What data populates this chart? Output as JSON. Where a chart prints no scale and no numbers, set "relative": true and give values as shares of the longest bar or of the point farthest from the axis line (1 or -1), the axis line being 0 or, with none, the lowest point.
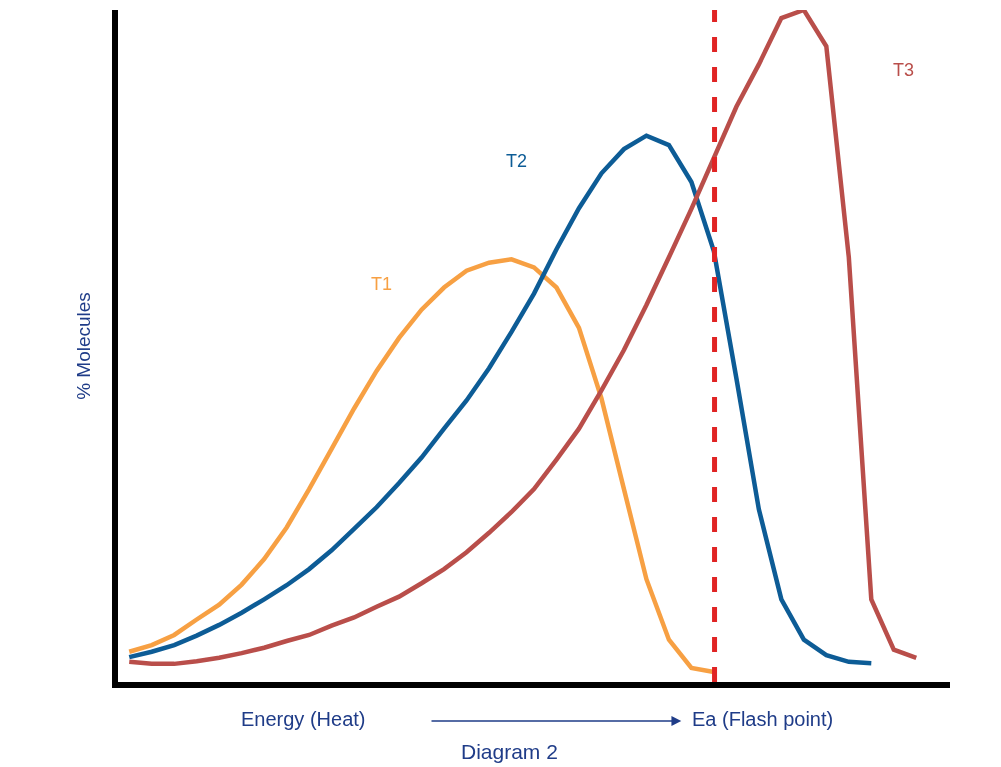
{
  "chart_data": {
    "type": "line",
    "relative": true,
    "ylabel": "% Molecules",
    "xlabel": "Energy (Heat)",
    "annotations": [
      "Ea (Flash point)",
      "Diagram 2"
    ],
    "categories": [
      null,
      null,
      null,
      null,
      null,
      null,
      null,
      null,
      null,
      null,
      null,
      null,
      null,
      null,
      null,
      null,
      null,
      null,
      null,
      null,
      null,
      null,
      null,
      null,
      null,
      null,
      null,
      null,
      null,
      null,
      null,
      null,
      null,
      null,
      null,
      null,
      null
    ],
    "series": [
      {
        "name": "T1",
        "color": "#f7a043",
        "values": [
          0.045,
          0.055,
          0.07,
          0.093,
          0.115,
          0.145,
          0.183,
          0.23,
          0.287,
          0.347,
          0.407,
          0.463,
          0.512,
          0.554,
          0.587,
          0.612,
          0.624,
          0.629,
          0.617,
          0.587,
          0.527,
          0.422,
          0.287,
          0.153,
          0.063,
          0.021,
          0.015,
          null,
          null,
          null,
          null,
          null,
          null,
          null,
          null,
          null,
          null
        ]
      },
      {
        "name": "T2",
        "color": "#0d5c96",
        "values": [
          0.037,
          0.045,
          0.055,
          0.069,
          0.085,
          0.103,
          0.123,
          0.144,
          0.168,
          0.196,
          0.228,
          0.26,
          0.296,
          0.334,
          0.377,
          0.419,
          0.467,
          0.521,
          0.578,
          0.644,
          0.705,
          0.757,
          0.793,
          0.813,
          0.799,
          0.744,
          0.641,
          0.452,
          0.257,
          0.123,
          0.063,
          0.04,
          0.03,
          0.028,
          null,
          null,
          null
        ]
      },
      {
        "name": "T3",
        "color": "#b94e4a",
        "values": [
          0.03,
          0.027,
          0.027,
          0.031,
          0.036,
          0.043,
          0.051,
          0.061,
          0.07,
          0.084,
          0.096,
          0.112,
          0.127,
          0.147,
          0.168,
          0.193,
          0.222,
          0.253,
          0.287,
          0.331,
          0.377,
          0.434,
          0.494,
          0.561,
          0.632,
          0.704,
          0.78,
          0.856,
          0.919,
          0.988,
          1,
          0.946,
          0.632,
          0.123,
          0.048,
          0.036,
          null
        ]
      }
    ],
    "legend": false,
    "marker": "none",
    "line_style": "solid"
  }
}
